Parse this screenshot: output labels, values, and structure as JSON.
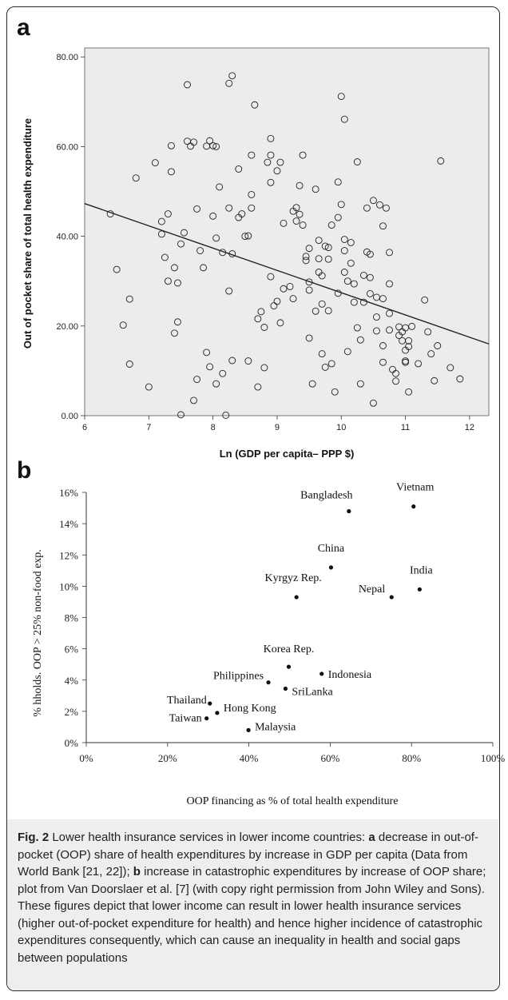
{
  "panels": {
    "a": "a",
    "b": "b"
  },
  "chart_data": [
    {
      "type": "scatter",
      "title": "",
      "xlabel": "Ln (GDP per capita– PPP $)",
      "ylabel": "Out of pocket share of total health expenditure",
      "xlim": [
        6,
        12.3
      ],
      "ylim": [
        0,
        82
      ],
      "xticks": [
        "6",
        "7",
        "8",
        "9",
        "10",
        "11",
        "12"
      ],
      "yticks": [
        "0.00",
        "20.00",
        "40.00",
        "60.00",
        "80.00"
      ],
      "grid": false,
      "fit_line": {
        "x": [
          6,
          12.3
        ],
        "y": [
          47.3,
          16.0
        ]
      },
      "points": [
        [
          6.4,
          45
        ],
        [
          6.5,
          32.6
        ],
        [
          6.7,
          26
        ],
        [
          6.8,
          53
        ],
        [
          6.6,
          20.2
        ],
        [
          6.7,
          11.5
        ],
        [
          7.0,
          6.4
        ],
        [
          7.1,
          56.4
        ],
        [
          7.2,
          43.3
        ],
        [
          7.2,
          40.5
        ],
        [
          7.25,
          35.3
        ],
        [
          7.3,
          45
        ],
        [
          7.3,
          30
        ],
        [
          7.35,
          60.2
        ],
        [
          7.35,
          54.4
        ],
        [
          7.4,
          18.4
        ],
        [
          7.45,
          20.9
        ],
        [
          7.4,
          33
        ],
        [
          7.45,
          29.6
        ],
        [
          7.5,
          38.3
        ],
        [
          7.55,
          40.8
        ],
        [
          7.5,
          0.2
        ],
        [
          7.6,
          73.8
        ],
        [
          7.6,
          61.2
        ],
        [
          7.65,
          60.1
        ],
        [
          7.7,
          61
        ],
        [
          7.75,
          46.1
        ],
        [
          7.7,
          3.4
        ],
        [
          7.75,
          8.1
        ],
        [
          7.8,
          36.8
        ],
        [
          7.85,
          33
        ],
        [
          7.9,
          60.1
        ],
        [
          7.95,
          61.3
        ],
        [
          8.0,
          60.2
        ],
        [
          8.0,
          44.5
        ],
        [
          8.05,
          60
        ],
        [
          8.05,
          39.6
        ],
        [
          8.1,
          51
        ],
        [
          8.15,
          36.4
        ],
        [
          7.9,
          14.1
        ],
        [
          7.95,
          10.9
        ],
        [
          8.05,
          7.1
        ],
        [
          8.15,
          9.4
        ],
        [
          8.25,
          74.1
        ],
        [
          8.3,
          75.8
        ],
        [
          8.25,
          46.3
        ],
        [
          8.3,
          36.1
        ],
        [
          8.25,
          27.8
        ],
        [
          8.3,
          12.3
        ],
        [
          8.2,
          0.1
        ],
        [
          8.4,
          55
        ],
        [
          8.45,
          45
        ],
        [
          8.4,
          44.2
        ],
        [
          8.5,
          40
        ],
        [
          8.55,
          40.1
        ],
        [
          8.55,
          12.2
        ],
        [
          8.6,
          58.1
        ],
        [
          8.6,
          49.3
        ],
        [
          8.6,
          46.3
        ],
        [
          8.65,
          69.3
        ],
        [
          8.7,
          6.4
        ],
        [
          8.7,
          21.6
        ],
        [
          8.75,
          23.2
        ],
        [
          8.8,
          19.7
        ],
        [
          8.8,
          10.7
        ],
        [
          8.85,
          56.5
        ],
        [
          8.9,
          61.8
        ],
        [
          8.9,
          58.1
        ],
        [
          8.9,
          52
        ],
        [
          8.9,
          31
        ],
        [
          8.95,
          24.5
        ],
        [
          9.0,
          25.5
        ],
        [
          9.05,
          20.7
        ],
        [
          9.0,
          54.6
        ],
        [
          9.05,
          56.5
        ],
        [
          9.1,
          42.9
        ],
        [
          9.1,
          28.3
        ],
        [
          9.2,
          28.8
        ],
        [
          9.25,
          26.1
        ],
        [
          9.25,
          45.6
        ],
        [
          9.3,
          46.4
        ],
        [
          9.35,
          44.9
        ],
        [
          9.3,
          43.4
        ],
        [
          9.35,
          51.3
        ],
        [
          9.4,
          58.1
        ],
        [
          9.4,
          42.5
        ],
        [
          9.45,
          35.5
        ],
        [
          9.45,
          34.6
        ],
        [
          9.5,
          37.3
        ],
        [
          9.5,
          29.8
        ],
        [
          9.5,
          28
        ],
        [
          9.5,
          17.3
        ],
        [
          9.55,
          7.1
        ],
        [
          9.6,
          50.5
        ],
        [
          9.6,
          23.3
        ],
        [
          9.65,
          39.1
        ],
        [
          9.65,
          35
        ],
        [
          9.65,
          32
        ],
        [
          9.7,
          31.2
        ],
        [
          9.75,
          37.8
        ],
        [
          9.7,
          24.9
        ],
        [
          9.7,
          13.8
        ],
        [
          9.75,
          10.8
        ],
        [
          9.8,
          37.5
        ],
        [
          9.8,
          34.9
        ],
        [
          9.8,
          23.4
        ],
        [
          9.85,
          42.5
        ],
        [
          9.85,
          11.6
        ],
        [
          9.9,
          5.3
        ],
        [
          9.95,
          44.2
        ],
        [
          9.95,
          52.1
        ],
        [
          10.0,
          71.2
        ],
        [
          10.0,
          47.1
        ],
        [
          10.05,
          66.1
        ],
        [
          10.05,
          39.3
        ],
        [
          10.05,
          36.8
        ],
        [
          10.05,
          32
        ],
        [
          10.1,
          30
        ],
        [
          10.1,
          14.3
        ],
        [
          10.15,
          38.6
        ],
        [
          10.15,
          34
        ],
        [
          10.2,
          29.4
        ],
        [
          10.2,
          25.3
        ],
        [
          10.25,
          56.6
        ],
        [
          10.25,
          19.6
        ],
        [
          10.3,
          16.9
        ],
        [
          10.3,
          7.1
        ],
        [
          10.35,
          31.3
        ],
        [
          10.35,
          25.3
        ],
        [
          10.4,
          46.3
        ],
        [
          10.4,
          36.5
        ],
        [
          10.45,
          36
        ],
        [
          10.45,
          30.8
        ],
        [
          10.45,
          27.2
        ],
        [
          10.5,
          48
        ],
        [
          10.5,
          2.8
        ],
        [
          10.55,
          26.4
        ],
        [
          10.55,
          22
        ],
        [
          10.55,
          18.9
        ],
        [
          10.6,
          47
        ],
        [
          10.65,
          42.3
        ],
        [
          10.65,
          26.1
        ],
        [
          10.65,
          15.6
        ],
        [
          10.65,
          11.9
        ],
        [
          10.7,
          46.3
        ],
        [
          10.75,
          36.4
        ],
        [
          10.75,
          29.4
        ],
        [
          10.75,
          22.8
        ],
        [
          10.75,
          19.1
        ],
        [
          10.8,
          10.3
        ],
        [
          10.85,
          7.7
        ],
        [
          10.85,
          9.4
        ],
        [
          10.9,
          17.9
        ],
        [
          10.95,
          18.7
        ],
        [
          10.95,
          16.7
        ],
        [
          11.0,
          19.6
        ],
        [
          11.0,
          14.6
        ],
        [
          11.0,
          12.2
        ],
        [
          11.0,
          11.9
        ],
        [
          11.05,
          16.7
        ],
        [
          11.05,
          15.4
        ],
        [
          11.05,
          5.3
        ],
        [
          11.1,
          19.9
        ],
        [
          11.2,
          11.6
        ],
        [
          11.3,
          25.8
        ],
        [
          11.35,
          18.7
        ],
        [
          11.4,
          13.8
        ],
        [
          11.45,
          7.8
        ],
        [
          11.5,
          15.6
        ],
        [
          11.55,
          56.8
        ],
        [
          11.7,
          10.7
        ],
        [
          11.85,
          8.2
        ],
        [
          10.9,
          19.8
        ],
        [
          9.95,
          27.3
        ]
      ]
    },
    {
      "type": "scatter",
      "title": "",
      "xlabel": "OOP financing as % of total health expenditure",
      "ylabel": "% hholds. OOP > 25% non-food exp.",
      "xlim": [
        0,
        100
      ],
      "ylim": [
        0,
        16
      ],
      "xticks": [
        "0%",
        "20%",
        "40%",
        "60%",
        "80%",
        "100%"
      ],
      "yticks": [
        "0%",
        "2%",
        "4%",
        "6%",
        "8%",
        "10%",
        "12%",
        "14%",
        "16%"
      ],
      "grid": false,
      "points": [
        {
          "label": "Bangladesh",
          "x": 64.6,
          "y": 14.8
        },
        {
          "label": "Vietnam",
          "x": 80.5,
          "y": 15.1
        },
        {
          "label": "China",
          "x": 60.2,
          "y": 11.2
        },
        {
          "label": "India",
          "x": 82.0,
          "y": 9.8
        },
        {
          "label": "Kyrgyz Rep.",
          "x": 51.7,
          "y": 9.3
        },
        {
          "label": "Nepal",
          "x": 75.1,
          "y": 9.3
        },
        {
          "label": "Korea Rep.",
          "x": 49.8,
          "y": 4.85
        },
        {
          "label": "Indonesia",
          "x": 57.9,
          "y": 4.4
        },
        {
          "label": "Philippines",
          "x": 44.8,
          "y": 3.85
        },
        {
          "label": "SriLanka",
          "x": 49.0,
          "y": 3.45
        },
        {
          "label": "Thailand",
          "x": 30.4,
          "y": 2.5
        },
        {
          "label": "Hong Kong",
          "x": 32.2,
          "y": 1.9
        },
        {
          "label": "Taiwan",
          "x": 29.6,
          "y": 1.55
        },
        {
          "label": "Malaysia",
          "x": 39.9,
          "y": 0.8
        }
      ]
    }
  ],
  "caption": {
    "fig_label": "Fig. 2",
    "line1": " Lower health insurance services in lower income countries:",
    "a_letter": "a",
    "a_text": " decrease in out-of-pocket (OOP) share of health expenditures by increase in GDP per capita (Data from World Bank [21, 22]); ",
    "b_letter": "b",
    "b_text": " increase in catastrophic expenditures by increase of OOP share; plot from Van Doorslaer et al. [7] (with copy right permission from John Wiley and Sons). These figures depict that lower income can result in lower health insurance services (higher out-of-pocket expenditure for health) and hence higher incidence of catastrophic expenditures consequently, which can cause an inequality in health and social gaps between populations"
  }
}
